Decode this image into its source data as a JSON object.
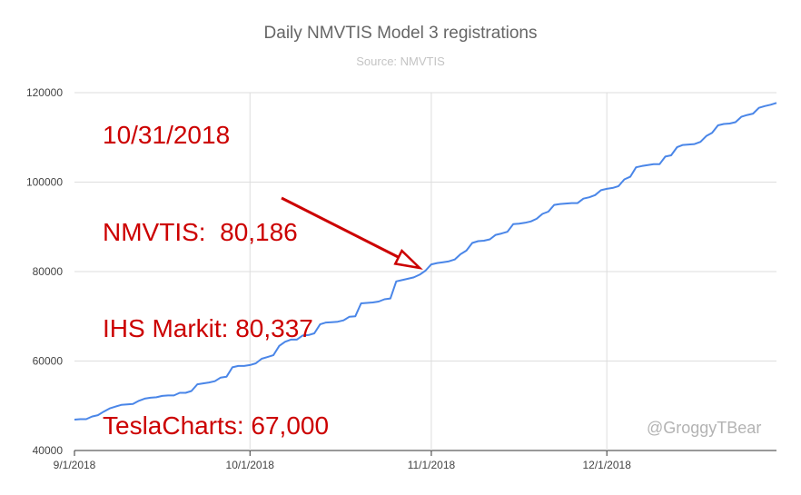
{
  "chart_data": {
    "type": "line",
    "title": "Daily NMVTIS Model 3 registrations",
    "subtitle": "Source: NMVTIS",
    "xlabel": "",
    "ylabel": "",
    "x_range": [
      "2018-09-01",
      "2018-12-30"
    ],
    "ylim": [
      40000,
      120000
    ],
    "y_ticks": [
      40000,
      60000,
      80000,
      100000,
      120000
    ],
    "y_tick_labels": [
      "40000",
      "60000",
      "80000",
      "100000",
      "120000"
    ],
    "x_ticks": [
      "2018-09-01",
      "2018-10-01",
      "2018-11-01",
      "2018-12-01"
    ],
    "x_tick_labels": [
      "9/1/2018",
      "10/1/2018",
      "11/1/2018",
      "12/1/2018"
    ],
    "grid": true,
    "legend": "none",
    "line_color": "#4a86e8",
    "annotation_color": "#cc0000",
    "annotation_lines": [
      "10/31/2018",
      "NMVTIS:  80,186",
      "IHS Markit: 80,337",
      "TeslaCharts: 67,000"
    ],
    "arrow_target": {
      "x": "2018-10-30",
      "y": 80000
    },
    "watermark": "@GroggyTBear",
    "series": [
      {
        "x": [
          "2018-09-01",
          "2018-09-02",
          "2018-09-03",
          "2018-09-04",
          "2018-09-05",
          "2018-09-06",
          "2018-09-07",
          "2018-09-08",
          "2018-09-09",
          "2018-09-10",
          "2018-09-11",
          "2018-09-12",
          "2018-09-13",
          "2018-09-14",
          "2018-09-15",
          "2018-09-16",
          "2018-09-17",
          "2018-09-18",
          "2018-09-19",
          "2018-09-20",
          "2018-09-21",
          "2018-09-22",
          "2018-09-23",
          "2018-09-24",
          "2018-09-25",
          "2018-09-26",
          "2018-09-27",
          "2018-09-28",
          "2018-09-29",
          "2018-09-30",
          "2018-10-01",
          "2018-10-02",
          "2018-10-03",
          "2018-10-04",
          "2018-10-05",
          "2018-10-06",
          "2018-10-07",
          "2018-10-08",
          "2018-10-09",
          "2018-10-10",
          "2018-10-11",
          "2018-10-12",
          "2018-10-13",
          "2018-10-14",
          "2018-10-15",
          "2018-10-16",
          "2018-10-17",
          "2018-10-18",
          "2018-10-19",
          "2018-10-20",
          "2018-10-21",
          "2018-10-22",
          "2018-10-23",
          "2018-10-24",
          "2018-10-25",
          "2018-10-26",
          "2018-10-27",
          "2018-10-28",
          "2018-10-29",
          "2018-10-30",
          "2018-10-31",
          "2018-11-01",
          "2018-11-02",
          "2018-11-03",
          "2018-11-04",
          "2018-11-05",
          "2018-11-06",
          "2018-11-07",
          "2018-11-08",
          "2018-11-09",
          "2018-11-10",
          "2018-11-11",
          "2018-11-12",
          "2018-11-13",
          "2018-11-14",
          "2018-11-15",
          "2018-11-16",
          "2018-11-17",
          "2018-11-18",
          "2018-11-19",
          "2018-11-20",
          "2018-11-21",
          "2018-11-22",
          "2018-11-23",
          "2018-11-24",
          "2018-11-25",
          "2018-11-26",
          "2018-11-27",
          "2018-11-28",
          "2018-11-29",
          "2018-11-30",
          "2018-12-01",
          "2018-12-02",
          "2018-12-03",
          "2018-12-04",
          "2018-12-05",
          "2018-12-06",
          "2018-12-07",
          "2018-12-08",
          "2018-12-09",
          "2018-12-10",
          "2018-12-11",
          "2018-12-12",
          "2018-12-13",
          "2018-12-14",
          "2018-12-15",
          "2018-12-16",
          "2018-12-17",
          "2018-12-18",
          "2018-12-19",
          "2018-12-20",
          "2018-12-21",
          "2018-12-22",
          "2018-12-23",
          "2018-12-24",
          "2018-12-25",
          "2018-12-26",
          "2018-12-27",
          "2018-12-28",
          "2018-12-29",
          "2018-12-30"
        ],
        "values": [
          46900,
          47000,
          47000,
          47600,
          47900,
          48700,
          49400,
          49800,
          50200,
          50300,
          50400,
          51100,
          51600,
          51800,
          51900,
          52200,
          52300,
          52300,
          52900,
          52900,
          53300,
          54800,
          55000,
          55200,
          55500,
          56300,
          56500,
          58600,
          58900,
          58900,
          59100,
          59500,
          60500,
          60900,
          61300,
          63400,
          64300,
          64800,
          64800,
          65700,
          65800,
          66200,
          68200,
          68600,
          68700,
          68800,
          69100,
          69900,
          70000,
          72900,
          73000,
          73100,
          73300,
          73800,
          74000,
          77800,
          78100,
          78400,
          78700,
          79300,
          80200,
          81600,
          81900,
          82100,
          82300,
          82700,
          83900,
          84700,
          86400,
          86800,
          86900,
          87200,
          88200,
          88500,
          88900,
          90600,
          90700,
          90900,
          91200,
          91800,
          92900,
          93400,
          94900,
          95100,
          95200,
          95300,
          95300,
          96300,
          96600,
          97100,
          98200,
          98500,
          98700,
          99100,
          100600,
          101200,
          103300,
          103600,
          103800,
          104000,
          104000,
          105700,
          106000,
          107800,
          108300,
          108400,
          108500,
          109000,
          110300,
          111000,
          112700,
          113000,
          113100,
          113400,
          114600,
          115000,
          115300,
          116600,
          117000,
          117300,
          117700
        ]
      }
    ]
  }
}
